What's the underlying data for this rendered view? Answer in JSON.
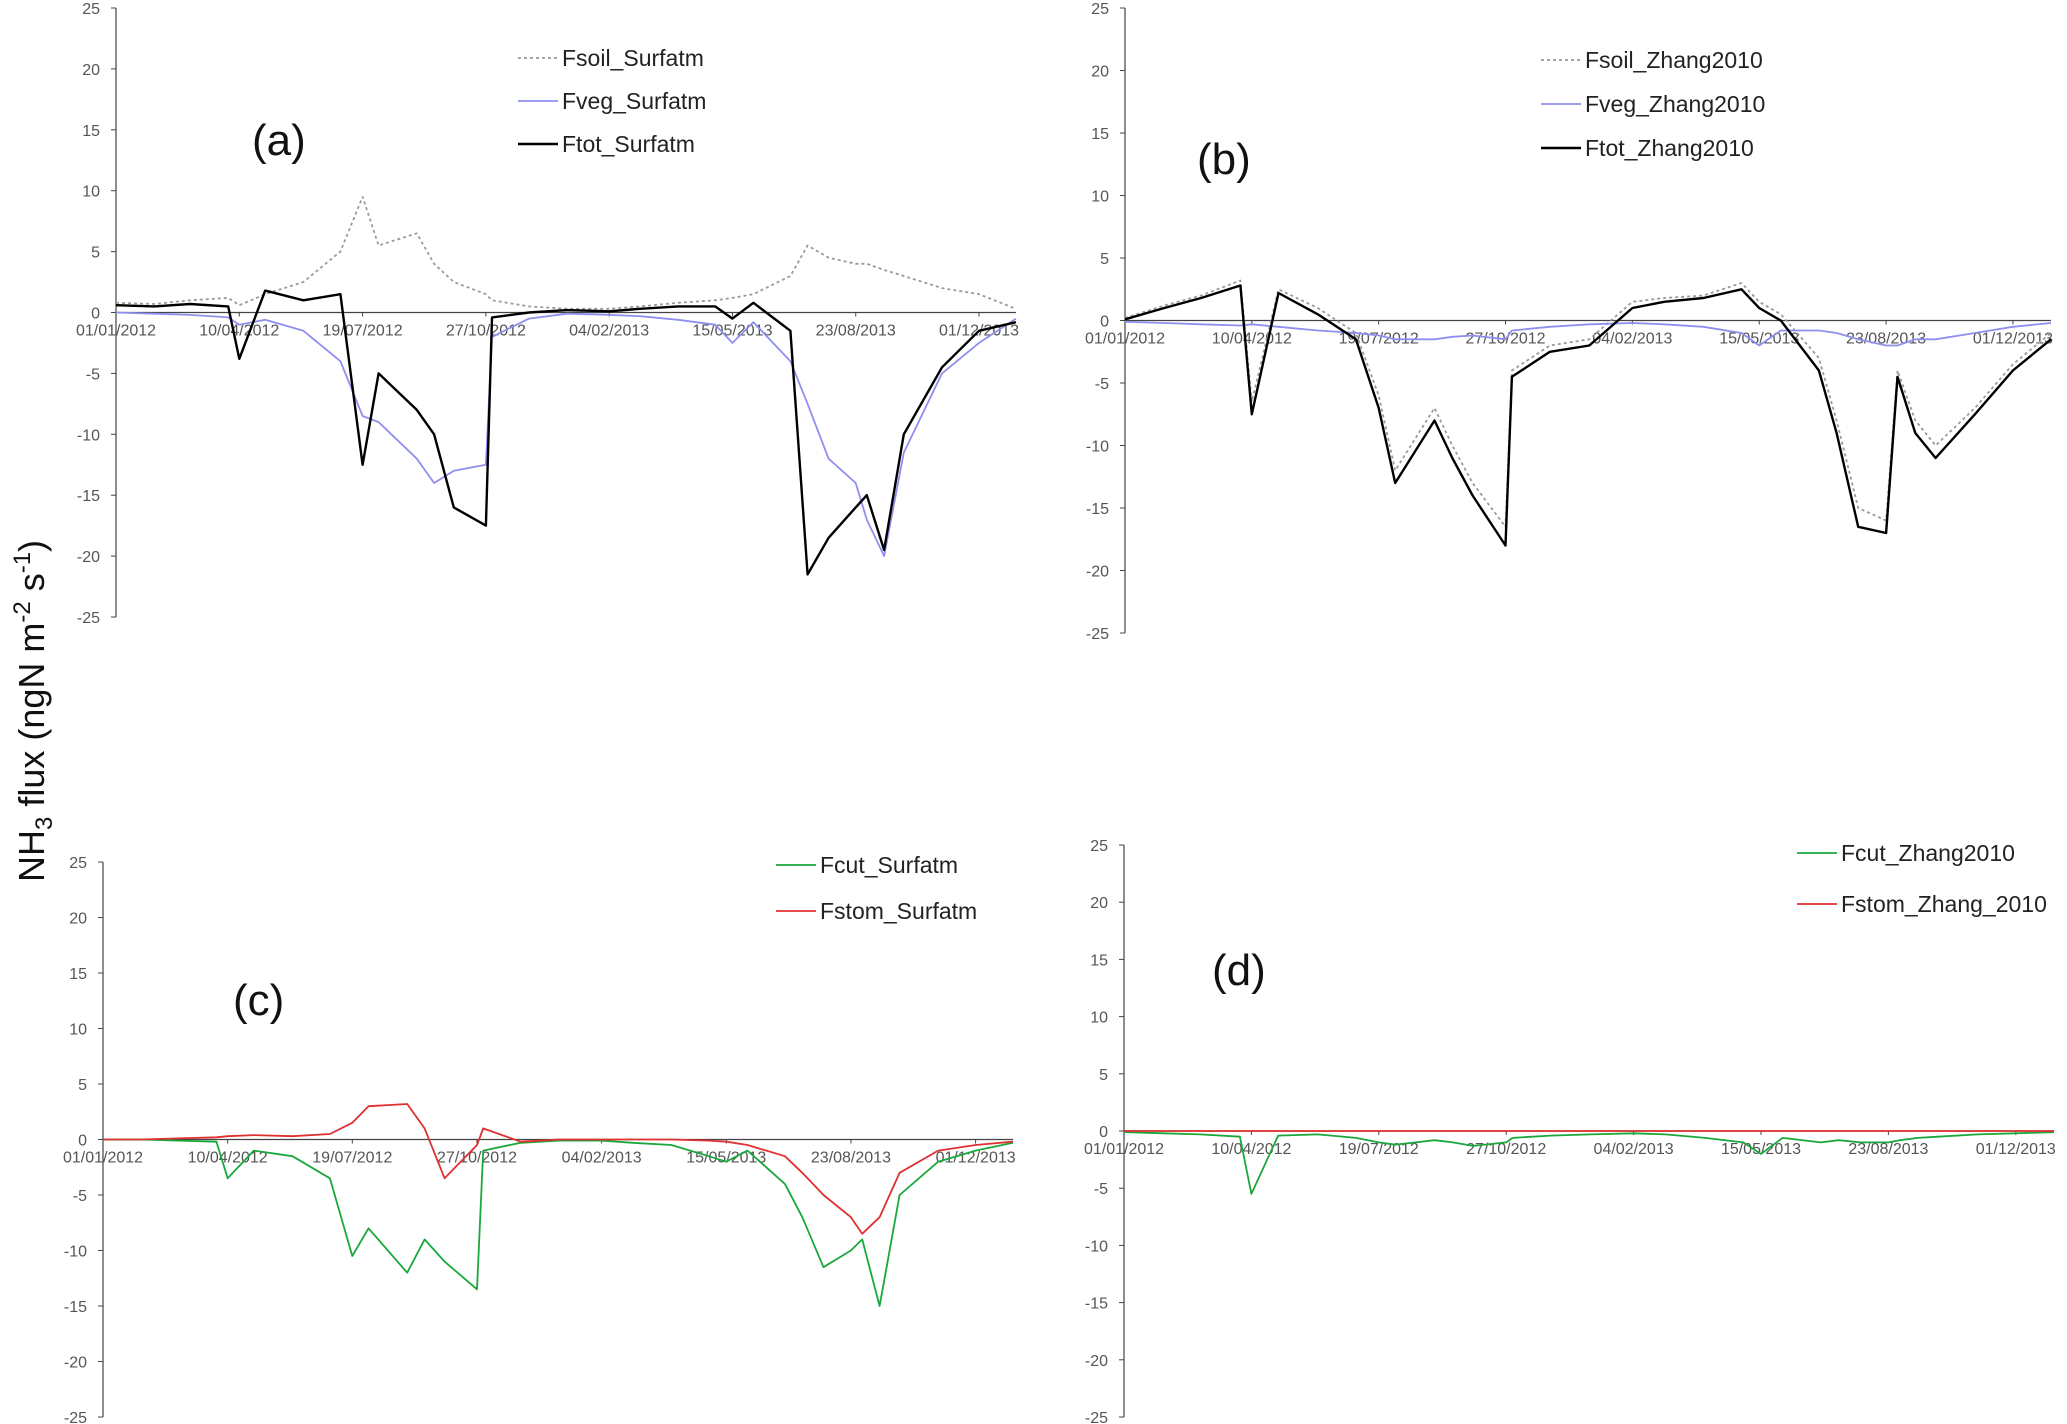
{
  "figure": {
    "ylabel_main": "NH",
    "ylabel_sub": "3",
    "ylabel_rest": " flux (ngN m",
    "ylabel_exp1": "-2",
    "ylabel_mid": " s",
    "ylabel_exp2": "-1",
    "ylabel_close": ")"
  },
  "colors": {
    "soil": "#9a9a9a",
    "veg": "#8f8ff0",
    "tot": "#000000",
    "cut": "#1aa83c",
    "stom": "#e03030"
  },
  "chart_data": [
    {
      "type": "line",
      "panel_label": "(a)",
      "yticks": [
        "25",
        "20",
        "15",
        "10",
        "5",
        "0",
        "-5",
        "-10",
        "-15",
        "-20",
        "-25"
      ],
      "ylim": [
        -25,
        25
      ],
      "xticks": [
        "01/01/2012",
        "10/04/2012",
        "19/07/2012",
        "27/10/2012",
        "04/02/2013",
        "15/05/2013",
        "23/08/2013",
        "01/12/2013"
      ],
      "legend_position": "top-center",
      "x": [
        "01/01/2012",
        "01/02/2012",
        "01/03/2012",
        "01/04/2012",
        "10/04/2012",
        "01/05/2012",
        "01/06/2012",
        "01/07/2012",
        "19/07/2012",
        "01/08/2012",
        "01/09/2012",
        "15/09/2012",
        "01/10/2012",
        "27/10/2012",
        "01/11/2012",
        "01/12/2012",
        "01/01/2013",
        "04/02/2013",
        "01/03/2013",
        "01/04/2013",
        "01/05/2013",
        "15/05/2013",
        "01/06/2013",
        "01/07/2013",
        "15/07/2013",
        "01/08/2013",
        "23/08/2013",
        "01/09/2013",
        "15/09/2013",
        "01/10/2013",
        "01/11/2013",
        "01/12/2013",
        "31/12/2013"
      ],
      "series": [
        {
          "name": "Fsoil_Surfatm",
          "color_key": "soil",
          "dash": true,
          "values": [
            0.8,
            0.7,
            1.0,
            1.2,
            0.6,
            1.5,
            2.5,
            5.0,
            9.5,
            5.5,
            6.5,
            4.0,
            2.5,
            1.5,
            1.0,
            0.5,
            0.3,
            0.3,
            0.5,
            0.8,
            1.0,
            1.2,
            1.5,
            3.0,
            5.5,
            4.5,
            4.0,
            4.0,
            3.5,
            3.0,
            2.0,
            1.5,
            0.3
          ]
        },
        {
          "name": "Fveg_Surfatm",
          "color_key": "veg",
          "dash": false,
          "values": [
            0.0,
            -0.1,
            -0.2,
            -0.4,
            -1.0,
            -0.6,
            -1.5,
            -4.0,
            -8.5,
            -9.0,
            -12.0,
            -14.0,
            -13.0,
            -12.5,
            -2.0,
            -0.5,
            -0.1,
            -0.2,
            -0.3,
            -0.6,
            -1.0,
            -2.5,
            -0.8,
            -4.0,
            -7.5,
            -12.0,
            -14.0,
            -17.0,
            -20.0,
            -11.5,
            -5.0,
            -2.5,
            -0.5
          ]
        },
        {
          "name": "Ftot_Surfatm",
          "color_key": "tot",
          "dash": false,
          "values": [
            0.6,
            0.5,
            0.7,
            0.5,
            -3.8,
            1.8,
            1.0,
            1.5,
            -12.5,
            -5.0,
            -8.0,
            -10.0,
            -16.0,
            -17.5,
            -0.4,
            0.0,
            0.2,
            0.1,
            0.3,
            0.5,
            0.5,
            -0.5,
            0.8,
            -1.5,
            -21.5,
            -18.5,
            -16.0,
            -15.0,
            -19.5,
            -10.0,
            -4.5,
            -1.5,
            -0.8
          ]
        }
      ]
    },
    {
      "type": "line",
      "panel_label": "(b)",
      "yticks": [
        "25",
        "20",
        "15",
        "10",
        "5",
        "0",
        "-5",
        "-10",
        "-15",
        "-20",
        "-25"
      ],
      "ylim": [
        -25,
        25
      ],
      "xticks": [
        "01/01/2012",
        "10/04/2012",
        "19/07/2012",
        "27/10/2012",
        "04/02/2013",
        "15/05/2013",
        "23/08/2013",
        "01/12/2013"
      ],
      "legend_position": "top-right",
      "x": [
        "01/01/2012",
        "01/02/2012",
        "01/03/2012",
        "01/04/2012",
        "10/04/2012",
        "01/05/2012",
        "01/06/2012",
        "01/07/2012",
        "19/07/2012",
        "01/08/2012",
        "01/09/2012",
        "15/09/2012",
        "01/10/2012",
        "27/10/2012",
        "01/11/2012",
        "01/12/2012",
        "01/01/2013",
        "04/02/2013",
        "01/03/2013",
        "01/04/2013",
        "01/05/2013",
        "15/05/2013",
        "01/06/2013",
        "01/07/2013",
        "15/07/2013",
        "01/08/2013",
        "23/08/2013",
        "01/09/2013",
        "15/09/2013",
        "01/10/2013",
        "01/11/2013",
        "01/12/2013",
        "31/12/2013"
      ],
      "series": [
        {
          "name": "Fsoil_Zhang2010",
          "color_key": "soil",
          "dash": true,
          "values": [
            0.2,
            1.2,
            2.0,
            3.2,
            -6.5,
            2.5,
            1.0,
            -1.0,
            -6.0,
            -12.0,
            -7.0,
            -10.0,
            -13.0,
            -16.5,
            -4.0,
            -2.0,
            -1.5,
            1.5,
            1.8,
            2.0,
            3.0,
            1.5,
            0.5,
            -3.0,
            -8.0,
            -15.0,
            -16.0,
            -4.0,
            -8.0,
            -10.0,
            -7.0,
            -3.5,
            -1.0
          ]
        },
        {
          "name": "Fveg_Zhang2010",
          "color_key": "veg",
          "dash": false,
          "values": [
            -0.1,
            -0.2,
            -0.3,
            -0.4,
            -0.3,
            -0.5,
            -0.8,
            -1.0,
            -1.2,
            -1.5,
            -1.5,
            -1.3,
            -1.2,
            -1.5,
            -0.8,
            -0.5,
            -0.3,
            -0.2,
            -0.3,
            -0.5,
            -1.0,
            -2.0,
            -0.8,
            -0.8,
            -1.0,
            -1.5,
            -2.0,
            -2.0,
            -1.5,
            -1.5,
            -1.0,
            -0.5,
            -0.2
          ]
        },
        {
          "name": "Ftot_Zhang2010",
          "color_key": "tot",
          "dash": false,
          "values": [
            0.1,
            1.0,
            1.8,
            2.8,
            -7.5,
            2.2,
            0.5,
            -1.5,
            -7.0,
            -13.0,
            -8.0,
            -11.0,
            -14.0,
            -18.0,
            -4.5,
            -2.5,
            -2.0,
            1.0,
            1.5,
            1.8,
            2.5,
            1.0,
            0.0,
            -4.0,
            -9.0,
            -16.5,
            -17.0,
            -4.5,
            -9.0,
            -11.0,
            -7.5,
            -4.0,
            -1.5
          ]
        }
      ]
    },
    {
      "type": "line",
      "panel_label": "(c)",
      "yticks": [
        "25",
        "20",
        "15",
        "10",
        "5",
        "0",
        "-5",
        "-10",
        "-15",
        "-20",
        "-25"
      ],
      "ylim": [
        -25,
        25
      ],
      "xticks": [
        "01/01/2012",
        "10/04/2012",
        "19/07/2012",
        "27/10/2012",
        "04/02/2013",
        "15/05/2013",
        "23/08/2013",
        "01/12/2013"
      ],
      "legend_position": "top-right",
      "x": [
        "01/01/2012",
        "01/02/2012",
        "01/03/2012",
        "01/04/2012",
        "10/04/2012",
        "01/05/2012",
        "01/06/2012",
        "01/07/2012",
        "19/07/2012",
        "01/08/2012",
        "01/09/2012",
        "15/09/2012",
        "01/10/2012",
        "27/10/2012",
        "01/11/2012",
        "01/12/2012",
        "01/01/2013",
        "04/02/2013",
        "01/03/2013",
        "01/04/2013",
        "01/05/2013",
        "15/05/2013",
        "01/06/2013",
        "01/07/2013",
        "15/07/2013",
        "01/08/2013",
        "23/08/2013",
        "01/09/2013",
        "15/09/2013",
        "01/10/2013",
        "01/11/2013",
        "01/12/2013",
        "31/12/2013"
      ],
      "series": [
        {
          "name": "Fcut_Surfatm",
          "color_key": "cut",
          "dash": false,
          "values": [
            0.0,
            0.0,
            -0.1,
            -0.2,
            -3.5,
            -1.0,
            -1.5,
            -3.5,
            -10.5,
            -8.0,
            -12.0,
            -9.0,
            -11.0,
            -13.5,
            -1.0,
            -0.3,
            -0.1,
            -0.1,
            -0.3,
            -0.5,
            -1.5,
            -2.0,
            -1.0,
            -4.0,
            -7.0,
            -11.5,
            -10.0,
            -9.0,
            -15.0,
            -5.0,
            -2.0,
            -1.0,
            -0.3
          ]
        },
        {
          "name": "Fstom_Surfatm",
          "color_key": "stom",
          "dash": false,
          "values": [
            0.0,
            0.0,
            0.1,
            0.2,
            0.3,
            0.4,
            0.3,
            0.5,
            1.5,
            3.0,
            3.2,
            1.0,
            -3.5,
            -0.5,
            1.0,
            -0.2,
            0.0,
            0.0,
            0.0,
            0.0,
            -0.1,
            -0.2,
            -0.5,
            -1.5,
            -3.0,
            -5.0,
            -7.0,
            -8.5,
            -7.0,
            -3.0,
            -1.0,
            -0.5,
            -0.2
          ]
        }
      ]
    },
    {
      "type": "line",
      "panel_label": "(d)",
      "yticks": [
        "25",
        "20",
        "15",
        "10",
        "5",
        "0",
        "-5",
        "-10",
        "-15",
        "-20",
        "-25"
      ],
      "ylim": [
        -25,
        25
      ],
      "xticks": [
        "01/01/2012",
        "10/04/2012",
        "19/07/2012",
        "27/10/2012",
        "04/02/2013",
        "15/05/2013",
        "23/08/2013",
        "01/12/2013"
      ],
      "legend_position": "top-right",
      "x": [
        "01/01/2012",
        "01/02/2012",
        "01/03/2012",
        "01/04/2012",
        "10/04/2012",
        "01/05/2012",
        "01/06/2012",
        "01/07/2012",
        "19/07/2012",
        "01/08/2012",
        "01/09/2012",
        "15/09/2012",
        "01/10/2012",
        "27/10/2012",
        "01/11/2012",
        "01/12/2012",
        "01/01/2013",
        "04/02/2013",
        "01/03/2013",
        "01/04/2013",
        "01/05/2013",
        "15/05/2013",
        "01/06/2013",
        "01/07/2013",
        "15/07/2013",
        "01/08/2013",
        "23/08/2013",
        "01/09/2013",
        "15/09/2013",
        "01/10/2013",
        "01/11/2013",
        "01/12/2013",
        "31/12/2013"
      ],
      "series": [
        {
          "name": "Fcut_Zhang2010",
          "color_key": "cut",
          "dash": false,
          "values": [
            -0.1,
            -0.2,
            -0.3,
            -0.5,
            -5.5,
            -0.4,
            -0.3,
            -0.6,
            -1.0,
            -1.2,
            -0.8,
            -1.0,
            -1.3,
            -1.0,
            -0.6,
            -0.4,
            -0.3,
            -0.2,
            -0.3,
            -0.6,
            -1.0,
            -2.0,
            -0.6,
            -1.0,
            -0.8,
            -1.0,
            -1.0,
            -0.8,
            -0.6,
            -0.5,
            -0.3,
            -0.2,
            -0.1
          ]
        },
        {
          "name": "Fstom_Zhang_2010",
          "color_key": "stom",
          "dash": false,
          "values": [
            0.0,
            0.0,
            0.0,
            0.0,
            0.0,
            0.0,
            0.0,
            0.0,
            0.0,
            0.0,
            0.0,
            0.0,
            0.0,
            0.0,
            0.0,
            0.0,
            0.0,
            0.0,
            0.0,
            0.0,
            0.0,
            0.0,
            0.0,
            0.0,
            0.0,
            0.0,
            0.0,
            0.0,
            0.0,
            0.0,
            0.0,
            0.0,
            0.0
          ]
        }
      ]
    }
  ]
}
